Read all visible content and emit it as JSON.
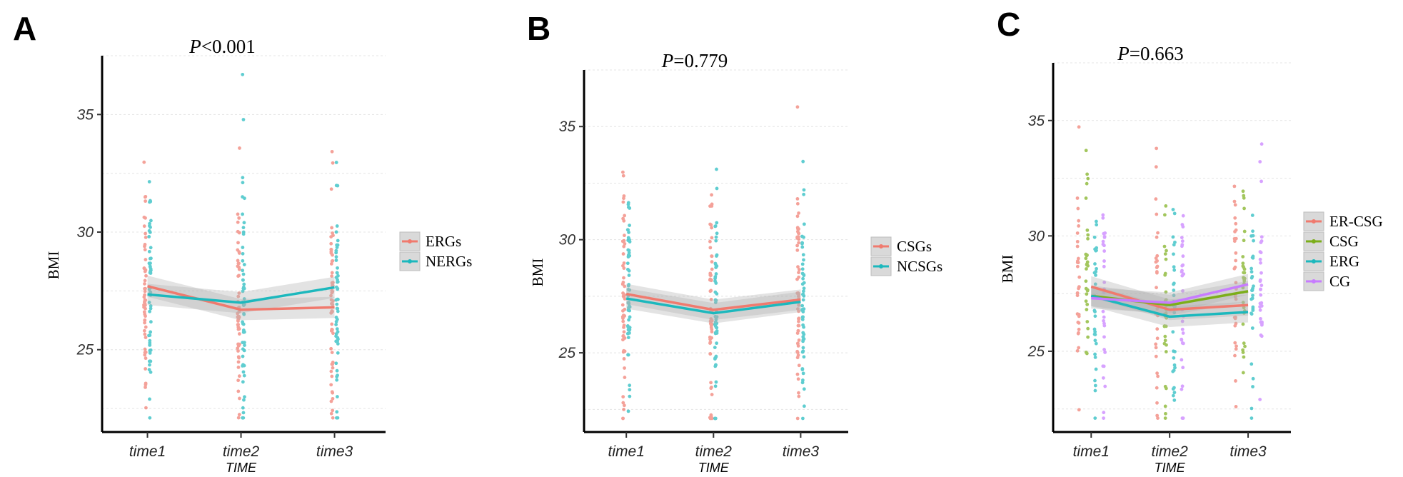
{
  "chart_data": [
    {
      "type": "line",
      "panel_label": "A",
      "title_italic": "P",
      "title_rest": "<0.001",
      "xlabel": "TIME",
      "ylabel": "BMI",
      "categories": [
        "time1",
        "time2",
        "time3"
      ],
      "ylim": [
        21.5,
        37.5
      ],
      "yticks": [
        25,
        30,
        35
      ],
      "grid": true,
      "legend_position": "right",
      "series": [
        {
          "name": "ERGs",
          "color": "#F07A6E",
          "values": [
            27.7,
            26.7,
            26.8
          ]
        },
        {
          "name": "NERGs",
          "color": "#1CB8BD",
          "values": [
            27.35,
            27.0,
            27.65
          ]
        }
      ]
    },
    {
      "type": "line",
      "panel_label": "B",
      "title_italic": "P",
      "title_rest": "=0.779",
      "xlabel": "TIME",
      "ylabel": "BMI",
      "categories": [
        "time1",
        "time2",
        "time3"
      ],
      "ylim": [
        21.5,
        37.5
      ],
      "yticks": [
        25,
        30,
        35
      ],
      "grid": true,
      "legend_position": "right",
      "series": [
        {
          "name": "CSGs",
          "color": "#F07A6E",
          "values": [
            27.6,
            26.9,
            27.35
          ]
        },
        {
          "name": "NCSGs",
          "color": "#1CB8BD",
          "values": [
            27.4,
            26.75,
            27.25
          ]
        }
      ]
    },
    {
      "type": "line",
      "panel_label": "C",
      "title_italic": "P",
      "title_rest": "=0.663",
      "xlabel": "TIME",
      "ylabel": "BMI",
      "categories": [
        "time1",
        "time2",
        "time3"
      ],
      "ylim": [
        21.5,
        37.5
      ],
      "yticks": [
        25,
        30,
        35
      ],
      "grid": true,
      "legend_position": "right",
      "series": [
        {
          "name": "ER-CSG",
          "color": "#F07A6E",
          "values": [
            27.8,
            26.8,
            27.0
          ]
        },
        {
          "name": "CSG",
          "color": "#7CAE1A",
          "values": [
            27.4,
            27.0,
            27.6
          ]
        },
        {
          "name": "ERG",
          "color": "#1CB8BD",
          "values": [
            27.4,
            26.5,
            26.7
          ]
        },
        {
          "name": "CG",
          "color": "#C77CFF",
          "values": [
            27.3,
            27.1,
            27.9
          ]
        }
      ]
    }
  ]
}
